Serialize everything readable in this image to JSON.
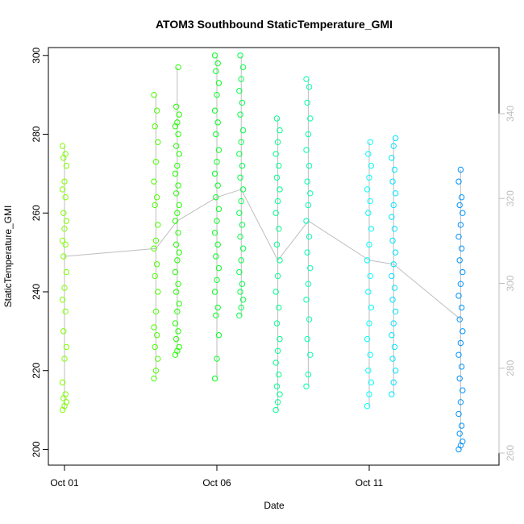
{
  "chart_data": {
    "type": "scatter",
    "title": "ATOM3 Southbound StaticTemperature_GMI",
    "xlabel": "Date",
    "ylabel": "StaticTemperature_GMI",
    "x_ticks": [
      "Oct 01",
      "Oct 06",
      "Oct 11"
    ],
    "y_ticks": [
      200,
      220,
      240,
      260,
      280,
      300
    ],
    "y_range": [
      196,
      302
    ],
    "right_axis_ticks": [
      260,
      280,
      300,
      320,
      340
    ],
    "right_axis_color": "#bebebe",
    "grid": false,
    "legend": "none",
    "series": [
      {
        "date": "Oct 01",
        "color": "#7FFF00",
        "values": [
          210,
          211,
          212,
          213,
          214,
          217,
          223,
          226,
          230,
          235,
          238,
          241,
          245,
          249,
          252,
          253,
          256,
          258,
          260,
          264,
          266,
          268,
          272,
          274,
          275,
          277
        ]
      },
      {
        "date": "Oct 04",
        "color": "#4CFF00",
        "values": [
          218,
          220,
          223,
          226,
          229,
          231,
          235,
          240,
          244,
          247,
          251,
          253,
          257,
          262,
          264,
          268,
          273,
          278,
          282,
          286,
          290
        ]
      },
      {
        "date": "Oct 04.7",
        "color": "#22FF00",
        "values": [
          224,
          225,
          226,
          228,
          230,
          232,
          235,
          237,
          240,
          242,
          245,
          248,
          250,
          252,
          255,
          258,
          260,
          262,
          265,
          267,
          270,
          272,
          275,
          277,
          280,
          282,
          283,
          285,
          287,
          297
        ]
      },
      {
        "date": "Oct 06",
        "color": "#00FF1F",
        "values": [
          218,
          223,
          229,
          234,
          236,
          240,
          243,
          246,
          249,
          252,
          255,
          258,
          261,
          264,
          267,
          270,
          273,
          276,
          280,
          283,
          286,
          290,
          293,
          296,
          298,
          300
        ]
      },
      {
        "date": "Oct 06.8",
        "color": "#00FF4A",
        "values": [
          234,
          236,
          238,
          240,
          242,
          245,
          248,
          251,
          254,
          257,
          260,
          263,
          266,
          269,
          272,
          275,
          278,
          281,
          285,
          288,
          291,
          294,
          297,
          300
        ]
      },
      {
        "date": "Oct 08",
        "color": "#00FF8F",
        "values": [
          210,
          212,
          214,
          216,
          219,
          222,
          225,
          228,
          232,
          236,
          240,
          244,
          248,
          252,
          256,
          260,
          263,
          266,
          269,
          272,
          275,
          278,
          281,
          284
        ]
      },
      {
        "date": "Oct 09",
        "color": "#00FFB0",
        "values": [
          216,
          219,
          224,
          228,
          233,
          238,
          242,
          246,
          250,
          254,
          258,
          262,
          265,
          268,
          272,
          276,
          280,
          284,
          288,
          292,
          294
        ]
      },
      {
        "date": "Oct 11",
        "color": "#00FFFF",
        "values": [
          211,
          214,
          217,
          220,
          224,
          228,
          232,
          236,
          240,
          244,
          248,
          252,
          256,
          260,
          263,
          266,
          269,
          272,
          275,
          278
        ]
      },
      {
        "date": "Oct 11.8",
        "color": "#00E4FF",
        "values": [
          214,
          217,
          220,
          223,
          226,
          229,
          232,
          235,
          238,
          241,
          244,
          247,
          250,
          253,
          256,
          259,
          262,
          265,
          268,
          271,
          274,
          277,
          279
        ]
      },
      {
        "date": "Oct 14",
        "color": "#0095FF",
        "values": [
          200,
          201,
          202,
          204,
          206,
          209,
          212,
          215,
          218,
          221,
          224,
          227,
          230,
          233,
          236,
          239,
          242,
          245,
          248,
          251,
          254,
          257,
          260,
          262,
          264,
          268,
          271
        ]
      }
    ]
  }
}
